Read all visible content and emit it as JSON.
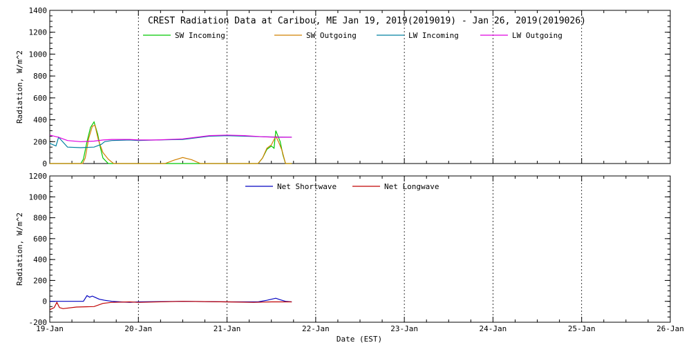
{
  "chart_data": [
    {
      "type": "line",
      "title": "CREST Radiation Data at Caribou, ME   Jan 19, 2019(2019019) - Jan 26, 2019(2019026)",
      "xlabel": "",
      "ylabel": "Radiation, W/m^2",
      "ylim": [
        0,
        1400
      ],
      "yticks": [
        "0",
        "200",
        "400",
        "600",
        "800",
        "1000",
        "1200",
        "1400"
      ],
      "x_unit": "days since 19-Jan",
      "xlim": [
        0,
        7
      ],
      "grid": true,
      "legend": "top",
      "series": [
        {
          "name": "SW Incoming",
          "color": "#00c800",
          "x": [
            0,
            0.35,
            0.38,
            0.42,
            0.46,
            0.5,
            0.54,
            0.57,
            0.6,
            0.66,
            1.5,
            2.35,
            2.4,
            2.45,
            2.5,
            2.53,
            2.55,
            2.57,
            2.6,
            2.63,
            2.66,
            2.73
          ],
          "y": [
            0,
            0,
            40,
            200,
            330,
            380,
            270,
            150,
            50,
            0,
            0,
            0,
            50,
            130,
            160,
            140,
            300,
            260,
            200,
            80,
            0,
            0
          ]
        },
        {
          "name": "SW Outgoing",
          "color": "#d08000",
          "x": [
            0,
            0.37,
            0.4,
            0.44,
            0.48,
            0.51,
            0.55,
            0.6,
            0.66,
            0.72,
            1.3,
            1.4,
            1.5,
            1.6,
            1.7,
            2.35,
            2.4,
            2.45,
            2.5,
            2.55,
            2.58,
            2.62,
            2.66,
            2.73
          ],
          "y": [
            0,
            0,
            50,
            230,
            340,
            350,
            210,
            100,
            40,
            0,
            0,
            30,
            55,
            35,
            0,
            0,
            50,
            140,
            170,
            250,
            200,
            120,
            0,
            0
          ]
        },
        {
          "name": "LW Incoming",
          "color": "#0080a0",
          "x": [
            0,
            0.07,
            0.1,
            0.2,
            0.35,
            0.5,
            0.58,
            0.62,
            0.7,
            0.9,
            1.0,
            1.2,
            1.5,
            1.8,
            2.0,
            2.2,
            2.4,
            2.55,
            2.73
          ],
          "y": [
            185,
            160,
            240,
            150,
            145,
            150,
            175,
            200,
            210,
            215,
            210,
            215,
            220,
            250,
            255,
            250,
            245,
            242,
            240
          ]
        },
        {
          "name": "LW Outgoing",
          "color": "#e000e0",
          "x": [
            0,
            0.1,
            0.2,
            0.35,
            0.5,
            0.6,
            0.7,
            0.8,
            0.9,
            1.0,
            1.2,
            1.5,
            1.8,
            2.0,
            2.2,
            2.4,
            2.55,
            2.73
          ],
          "y": [
            260,
            240,
            210,
            200,
            205,
            215,
            220,
            220,
            220,
            215,
            215,
            225,
            255,
            260,
            255,
            245,
            240,
            240
          ]
        }
      ]
    },
    {
      "type": "line",
      "title": "",
      "xlabel": "Date (EST)",
      "ylabel": "Radiation, W/m^2",
      "ylim": [
        -200,
        1200
      ],
      "yticks": [
        "-200",
        "0",
        "200",
        "400",
        "600",
        "800",
        "1000",
        "1200"
      ],
      "xticks": [
        "19-Jan",
        "20-Jan",
        "21-Jan",
        "22-Jan",
        "23-Jan",
        "24-Jan",
        "25-Jan",
        "26-Jan"
      ],
      "x_unit": "days since 19-Jan",
      "xlim": [
        0,
        7
      ],
      "grid": true,
      "legend": "top",
      "series": [
        {
          "name": "Net Shortwave",
          "color": "#0000c0",
          "x": [
            0,
            0.38,
            0.42,
            0.45,
            0.48,
            0.52,
            0.56,
            0.62,
            0.7,
            0.8,
            0.9,
            1.0,
            1.5,
            2.0,
            2.35,
            2.45,
            2.55,
            2.6,
            2.66,
            2.73
          ],
          "y": [
            0,
            0,
            55,
            40,
            50,
            35,
            20,
            10,
            0,
            -5,
            -10,
            -5,
            0,
            -5,
            -5,
            10,
            30,
            15,
            0,
            -5
          ]
        },
        {
          "name": "Net Longwave",
          "color": "#c00000",
          "x": [
            0,
            0.05,
            0.08,
            0.11,
            0.15,
            0.3,
            0.5,
            0.6,
            0.7,
            0.9,
            1.0,
            1.5,
            2.0,
            2.3,
            2.5,
            2.73
          ],
          "y": [
            -80,
            -60,
            -10,
            -60,
            -70,
            -55,
            -50,
            -20,
            -10,
            -5,
            -10,
            0,
            -5,
            -10,
            -5,
            -5
          ]
        }
      ]
    }
  ]
}
